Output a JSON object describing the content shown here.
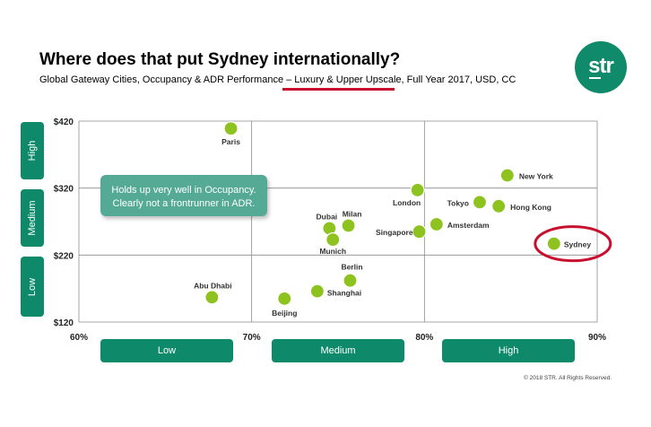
{
  "header": {
    "title": "Where does that put Sydney internationally?",
    "subtitle_pre": "Global Gateway Cities, Occupancy & ADR Performance – ",
    "subtitle_highlight": "Luxury & Upper Upscale",
    "subtitle_post": ", Full Year 2017, USD, CC"
  },
  "logo": {
    "text": "str"
  },
  "callout": {
    "line1": "Holds up very well in Occupancy.",
    "line2": "Clearly not a frontrunner in ADR."
  },
  "bands": {
    "x": [
      "Low",
      "Medium",
      "High"
    ],
    "y": [
      "High",
      "Medium",
      "Low"
    ]
  },
  "footer": {
    "copyright": "© 2018 STR. All Rights Reserved."
  },
  "colors": {
    "accent": "#0e8a6b",
    "point": "#8dc21f",
    "highlight_ring": "#c8102e",
    "callout": "#55aa96"
  },
  "chart_data": {
    "type": "scatter",
    "title": "",
    "xlabel": "",
    "ylabel": "",
    "xlim": [
      60,
      90
    ],
    "ylim": [
      120,
      420
    ],
    "x_ticks": [
      "60%",
      "70%",
      "80%",
      "90%"
    ],
    "y_ticks": [
      "$120",
      "$220",
      "$320",
      "$420"
    ],
    "x_tick_values": [
      60,
      70,
      80,
      90
    ],
    "y_tick_values": [
      120,
      220,
      320,
      420
    ],
    "highlight": "Sydney",
    "points": [
      {
        "label": "Paris",
        "x": 68.8,
        "y": 409
      },
      {
        "label": "New York",
        "x": 84.8,
        "y": 339
      },
      {
        "label": "London",
        "x": 79.6,
        "y": 317
      },
      {
        "label": "Tokyo",
        "x": 83.2,
        "y": 299
      },
      {
        "label": "Hong Kong",
        "x": 84.3,
        "y": 293
      },
      {
        "label": "Milan",
        "x": 75.6,
        "y": 264
      },
      {
        "label": "Dubai",
        "x": 74.5,
        "y": 260
      },
      {
        "label": "Munich",
        "x": 74.7,
        "y": 243
      },
      {
        "label": "Amsterdam",
        "x": 80.7,
        "y": 266
      },
      {
        "label": "Singapore",
        "x": 79.7,
        "y": 255
      },
      {
        "label": "Sydney",
        "x": 87.5,
        "y": 237
      },
      {
        "label": "Berlin",
        "x": 75.7,
        "y": 182
      },
      {
        "label": "Shanghai",
        "x": 73.8,
        "y": 166
      },
      {
        "label": "Abu Dhabi",
        "x": 67.7,
        "y": 157
      },
      {
        "label": "Beijing",
        "x": 71.9,
        "y": 155
      }
    ]
  }
}
